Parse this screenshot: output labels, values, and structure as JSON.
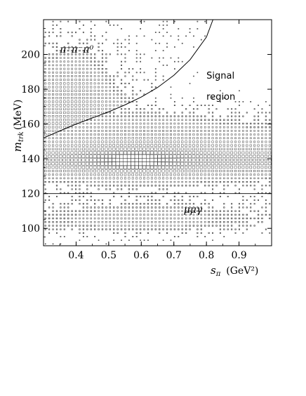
{
  "chart_data": {
    "type": "heatmap",
    "title": "",
    "xlabel": "sπ",
    "xlabel_symbol": "s",
    "xlabel_subscript": "π",
    "xlabel_unit": "(GeV²)",
    "ylabel": "m_trk (MeV)",
    "ylabel_symbol": "m",
    "ylabel_subscript": "trk",
    "ylabel_unit": "(MeV)",
    "xlim": [
      0.3,
      1.0
    ],
    "ylim": [
      90,
      220
    ],
    "x_ticks": [
      0.4,
      0.5,
      0.6,
      0.7,
      0.8,
      0.9
    ],
    "x_tick_labels": [
      "0.4",
      "0.5",
      "0.6",
      "0.7",
      "0.8",
      "0.9"
    ],
    "y_ticks": [
      100,
      120,
      140,
      160,
      180,
      200
    ],
    "y_tick_labels": [
      "100",
      "120",
      "140",
      "160",
      "180",
      "200"
    ],
    "grid": false,
    "legend": "none",
    "annotations": {
      "pi_label": "π⁺π⁻π⁰",
      "signal_line1": "Signal",
      "signal_line2": "region",
      "mumugamma": "μμγ"
    },
    "cut_curve": {
      "x": [
        0.3,
        0.35,
        0.4,
        0.45,
        0.5,
        0.55,
        0.6,
        0.65,
        0.7,
        0.75,
        0.8,
        0.82
      ],
      "y": [
        152,
        156,
        160,
        163.5,
        167,
        171,
        175.5,
        181,
        188,
        197,
        210,
        220
      ]
    },
    "cut_line_y": 120,
    "density_model": {
      "bins_x": 60,
      "bins_y": 62,
      "peak": {
        "x": 0.58,
        "y": 139
      },
      "description_components": [
        "pi-pi-gamma band at m_trk≈139 MeV",
        "pi+pi-pi0 region upper left",
        "mu-mu-gamma region below 120 MeV"
      ]
    }
  }
}
